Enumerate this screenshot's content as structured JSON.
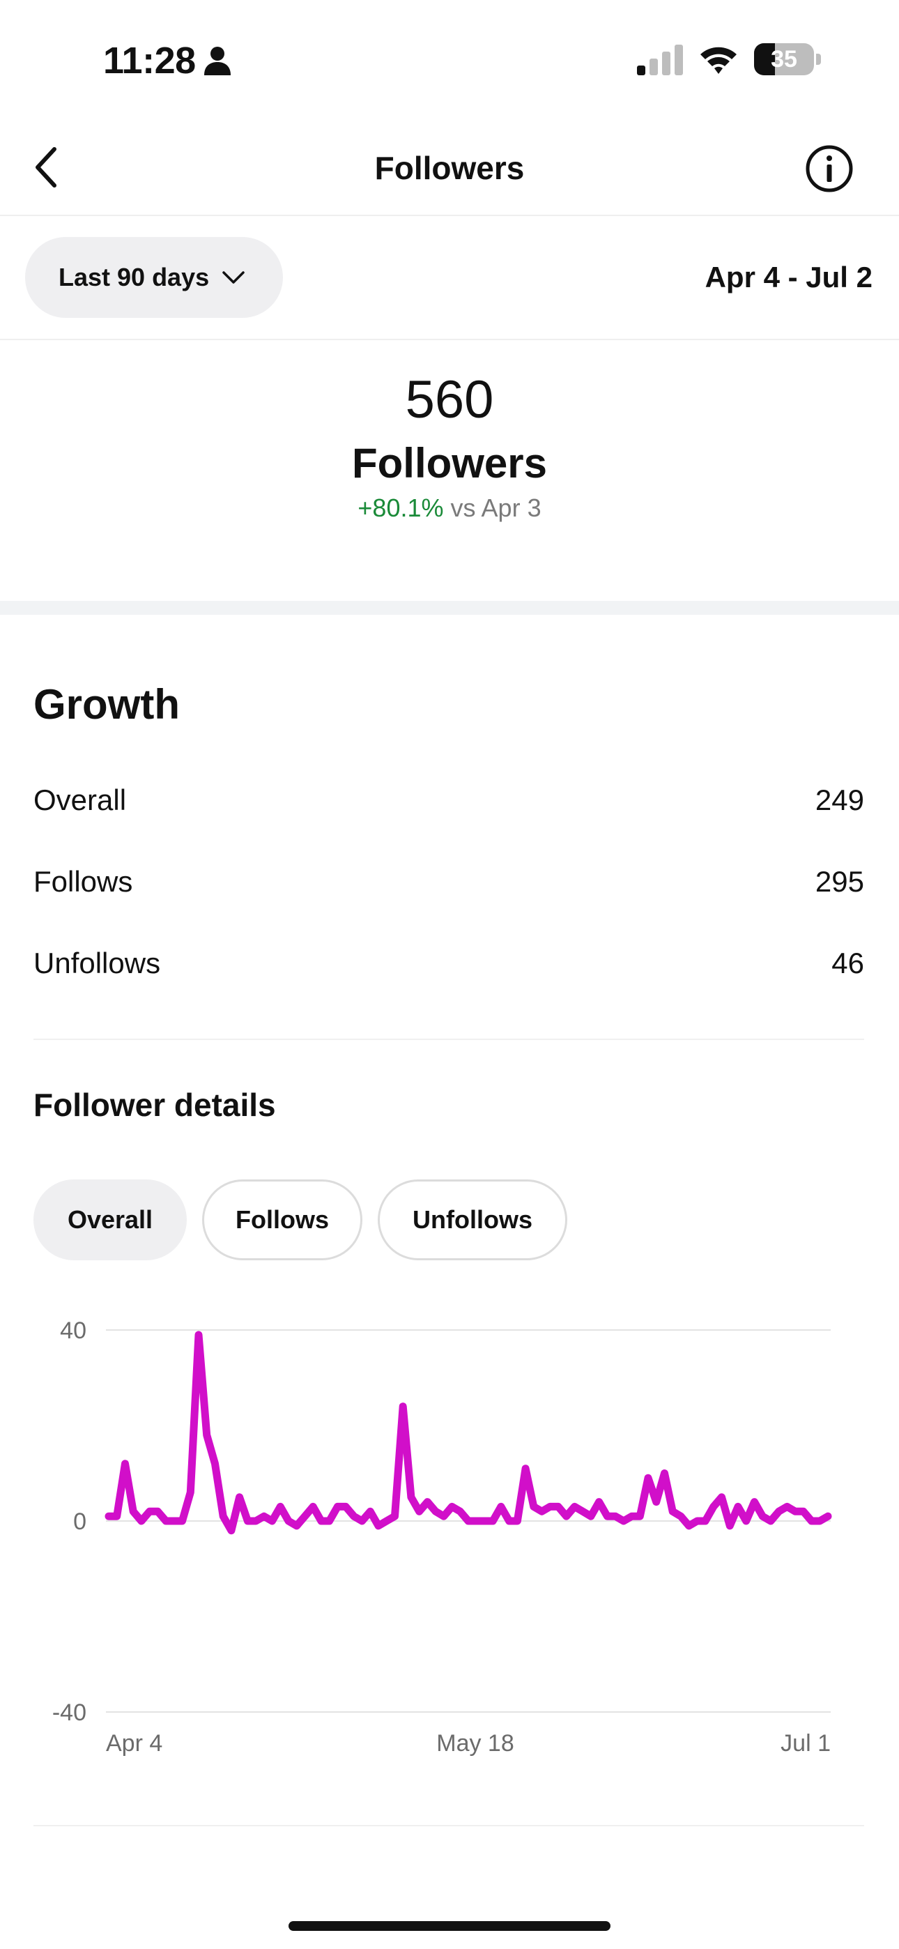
{
  "status_bar": {
    "time": "11:28",
    "battery_level": "35",
    "battery_fraction": 0.35
  },
  "header": {
    "title": "Followers",
    "back_icon": "chevron-left-icon",
    "info_icon": "info-icon"
  },
  "range": {
    "selected": "Last 90 days",
    "date_range": "Apr 4 - Jul 2"
  },
  "summary": {
    "count": "560",
    "label": "Followers",
    "change": "+80.1%",
    "comparison": "vs Apr 3"
  },
  "growth": {
    "title": "Growth",
    "rows": [
      {
        "label": "Overall",
        "value": "249"
      },
      {
        "label": "Follows",
        "value": "295"
      },
      {
        "label": "Unfollows",
        "value": "46"
      }
    ]
  },
  "details": {
    "title": "Follower details",
    "filters": [
      {
        "label": "Overall",
        "active": true
      },
      {
        "label": "Follows",
        "active": false
      },
      {
        "label": "Unfollows",
        "active": false
      }
    ]
  },
  "colors": {
    "line": "#d10fc9",
    "positive": "#1a8a38",
    "pill_bg": "#efeff1"
  },
  "chart_data": {
    "type": "line",
    "x_tick_labels": [
      "Apr 4",
      "May 18",
      "Jul 1"
    ],
    "y_ticks": [
      40,
      0,
      -40
    ],
    "ylim": [
      -40,
      40
    ],
    "grid": true,
    "series": [
      {
        "values": [
          1,
          1,
          12,
          2,
          0,
          2,
          2,
          0,
          0,
          0,
          6,
          39,
          18,
          12,
          1,
          -2,
          5,
          0,
          0,
          1,
          0,
          3,
          0,
          -1,
          1,
          3,
          0,
          0,
          3,
          3,
          1,
          0,
          2,
          -1,
          0,
          1,
          24,
          5,
          2,
          4,
          2,
          1,
          3,
          2,
          0,
          0,
          0,
          0,
          3,
          0,
          0,
          11,
          3,
          2,
          3,
          3,
          1,
          3,
          2,
          1,
          4,
          1,
          1,
          0,
          1,
          1,
          9,
          4,
          10,
          2,
          1,
          -1,
          0,
          0,
          3,
          5,
          -1,
          3,
          0,
          4,
          1,
          0,
          2,
          3,
          2,
          2,
          0,
          0,
          1
        ]
      }
    ]
  }
}
